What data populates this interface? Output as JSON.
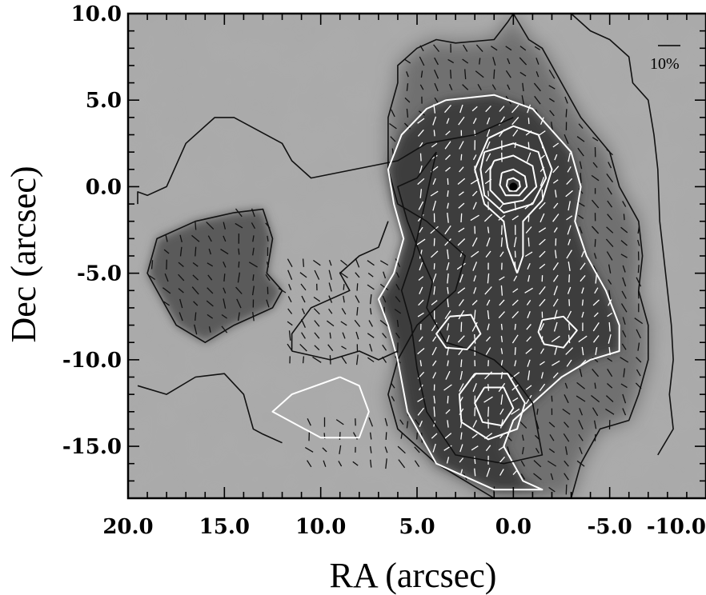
{
  "chart_data": {
    "type": "contour",
    "title": "",
    "xlabel": "RA (arcsec)",
    "ylabel": "Dec (arcsec)",
    "xlim": [
      20.0,
      -10.0
    ],
    "ylim": [
      -18.0,
      10.0
    ],
    "x_ticks": [
      20.0,
      15.0,
      10.0,
      5.0,
      0.0,
      -5.0,
      -10.0
    ],
    "x_tick_labels": [
      "20.0",
      "15.0",
      "10.0",
      "5.0",
      "0.0",
      "-5.0",
      "-10.0"
    ],
    "y_ticks": [
      10.0,
      5.0,
      0.0,
      -5.0,
      -10.0,
      -15.0
    ],
    "y_tick_labels": [
      "10.0",
      "5.0",
      "0.0",
      "-5.0",
      "-10.0",
      "-15.0"
    ],
    "x_minor_step": 1.0,
    "y_minor_step": 1.0,
    "scale_bar_label": "10%",
    "grid": false,
    "background": "greyscale intensity image",
    "colors": {
      "contour_dark": "#111111",
      "contour_light": "#ffffff",
      "vector_dark": "#111111",
      "vector_light": "#ffffff",
      "bg_outer": "#a9a9a9",
      "bg_inner": "#3c3c3c"
    },
    "peak": {
      "ra": 0.0,
      "dec": 0.0
    },
    "contours": [
      {
        "name": "outer",
        "color": "dark",
        "points": [
          [
            0,
            4
          ],
          [
            2,
            3
          ],
          [
            4.5,
            2.5
          ],
          [
            6,
            1.5
          ],
          [
            10.5,
            0.5
          ],
          [
            11.5,
            1.5
          ],
          [
            12,
            2.5
          ],
          [
            14.5,
            4
          ],
          [
            15.5,
            4
          ],
          [
            17,
            2.5
          ],
          [
            18,
            0
          ],
          [
            19,
            -0.5
          ],
          [
            19.5,
            -0.3
          ],
          [
            19.5,
            -1
          ]
        ]
      },
      {
        "name": "envelope",
        "color": "dark",
        "points": [
          [
            0,
            10
          ],
          [
            -0.8,
            8.5
          ],
          [
            -1.5,
            8
          ],
          [
            -2.5,
            6
          ],
          [
            -3.5,
            4
          ],
          [
            -5,
            2
          ],
          [
            -5.5,
            0
          ],
          [
            -6.5,
            -2
          ],
          [
            -6.7,
            -4
          ],
          [
            -6.5,
            -6
          ],
          [
            -7,
            -8
          ],
          [
            -7,
            -10
          ],
          [
            -6.5,
            -12
          ],
          [
            -6,
            -13.5
          ],
          [
            -4.5,
            -14
          ],
          [
            -3.5,
            -16
          ],
          [
            -3,
            -18
          ],
          [
            1,
            -18
          ],
          [
            4,
            -16
          ],
          [
            6,
            -14
          ],
          [
            6.5,
            -12
          ],
          [
            6,
            -10
          ],
          [
            5,
            -8
          ],
          [
            3,
            -6
          ],
          [
            2.5,
            -4
          ],
          [
            4.5,
            -2
          ],
          [
            6,
            -1
          ],
          [
            6.5,
            1
          ],
          [
            6.5,
            4
          ],
          [
            6,
            6
          ],
          [
            6,
            7
          ],
          [
            5,
            8
          ],
          [
            4,
            8.5
          ],
          [
            3,
            8.3
          ],
          [
            1,
            8.5
          ],
          [
            0.3,
            9.5
          ],
          [
            0,
            10
          ]
        ]
      },
      {
        "name": "white-main",
        "color": "light",
        "points": [
          [
            3.5,
            5
          ],
          [
            1,
            5.3
          ],
          [
            -1,
            4.5
          ],
          [
            -3,
            2
          ],
          [
            -3.5,
            0
          ],
          [
            -3.2,
            -2
          ],
          [
            -3.8,
            -4
          ],
          [
            -4.8,
            -6
          ],
          [
            -5.5,
            -8
          ],
          [
            -5.5,
            -9.5
          ],
          [
            -4,
            -10
          ],
          [
            -2.5,
            -11
          ],
          [
            -1,
            -12.5
          ],
          [
            0,
            -13.5
          ],
          [
            0.5,
            -15
          ],
          [
            -0.5,
            -17
          ],
          [
            -1.5,
            -17.5
          ],
          [
            1,
            -17.5
          ],
          [
            4,
            -16
          ],
          [
            5.5,
            -13
          ],
          [
            6,
            -10
          ],
          [
            6.5,
            -8
          ],
          [
            7,
            -6.5
          ],
          [
            6.2,
            -5
          ],
          [
            5.7,
            -3
          ],
          [
            6.2,
            -1
          ],
          [
            6.5,
            1
          ],
          [
            5.8,
            3
          ],
          [
            4.5,
            4.5
          ],
          [
            3.5,
            5
          ]
        ]
      },
      {
        "name": "inner-dark",
        "color": "dark",
        "points": [
          [
            4,
            2
          ],
          [
            5,
            0.5
          ],
          [
            6,
            0
          ],
          [
            5.5,
            -2
          ],
          [
            4.8,
            -4
          ],
          [
            4.2,
            -5.5
          ],
          [
            4.5,
            -7
          ],
          [
            3.5,
            -9
          ],
          [
            2,
            -9.5
          ],
          [
            1,
            -10
          ],
          [
            0,
            -11
          ],
          [
            -1,
            -12.5
          ],
          [
            -1.5,
            -15.5
          ],
          [
            0.5,
            -16
          ],
          [
            3,
            -15.5
          ],
          [
            4.5,
            -13
          ],
          [
            5,
            -10.5
          ],
          [
            5.3,
            -8
          ],
          [
            5.8,
            -6
          ],
          [
            5.2,
            -4
          ],
          [
            4.8,
            -2
          ],
          [
            4,
            2
          ]
        ]
      },
      {
        "name": "white-peak-1",
        "color": "light",
        "points": [
          [
            -0.2,
            -5
          ],
          [
            0.3,
            -3.5
          ],
          [
            0.5,
            -2
          ],
          [
            1.5,
            -1
          ],
          [
            2,
            1
          ],
          [
            1.3,
            2.8
          ],
          [
            0,
            3.5
          ],
          [
            -1.3,
            3
          ],
          [
            -2,
            1
          ],
          [
            -1.5,
            -0.8
          ],
          [
            -0.5,
            -2
          ],
          [
            -0.5,
            -4
          ],
          [
            -0.2,
            -5
          ]
        ]
      },
      {
        "name": "white-peak-2",
        "color": "light",
        "points": [
          [
            1.5,
            2
          ],
          [
            0,
            2.5
          ],
          [
            -1.3,
            2
          ],
          [
            -1.7,
            0.5
          ],
          [
            -1,
            -1
          ],
          [
            0.5,
            -1.5
          ],
          [
            1.5,
            -0.5
          ],
          [
            1.7,
            1
          ],
          [
            1.5,
            2
          ]
        ]
      },
      {
        "name": "white-peak-3",
        "color": "light",
        "points": [
          [
            1,
            1.5
          ],
          [
            0,
            1.8
          ],
          [
            -1,
            1.2
          ],
          [
            -1.2,
            0
          ],
          [
            -0.5,
            -0.8
          ],
          [
            0.5,
            -1
          ],
          [
            1.2,
            -0.2
          ],
          [
            1.2,
            1
          ],
          [
            1,
            1.5
          ]
        ]
      },
      {
        "name": "white-peak-4",
        "color": "light",
        "points": [
          [
            0.6,
            0.8
          ],
          [
            0,
            1
          ],
          [
            -0.6,
            0.6
          ],
          [
            -0.7,
            0
          ],
          [
            -0.3,
            -0.5
          ],
          [
            0.4,
            -0.5
          ],
          [
            0.7,
            0.1
          ],
          [
            0.6,
            0.8
          ]
        ]
      },
      {
        "name": "white-peak-5",
        "color": "light",
        "points": [
          [
            0.3,
            0.4
          ],
          [
            0,
            0.5
          ],
          [
            -0.3,
            0.3
          ],
          [
            -0.35,
            0
          ],
          [
            -0.15,
            -0.25
          ],
          [
            0.2,
            -0.25
          ],
          [
            0.35,
            0.05
          ],
          [
            0.3,
            0.4
          ]
        ]
      },
      {
        "name": "white-knot-1",
        "color": "light",
        "points": [
          [
            3.3,
            -7.5
          ],
          [
            2.2,
            -7.4
          ],
          [
            1.7,
            -8.5
          ],
          [
            2.4,
            -9.4
          ],
          [
            3.5,
            -9.3
          ],
          [
            4,
            -8.5
          ],
          [
            3.3,
            -7.5
          ]
        ]
      },
      {
        "name": "white-knot-2",
        "color": "light",
        "points": [
          [
            -1.5,
            -7.7
          ],
          [
            -2.6,
            -7.5
          ],
          [
            -3.3,
            -8.3
          ],
          [
            -2.6,
            -9.3
          ],
          [
            -1.6,
            -9.1
          ],
          [
            -1.3,
            -8.4
          ],
          [
            -1.5,
            -7.7
          ]
        ]
      },
      {
        "name": "white-south-1",
        "color": "light",
        "points": [
          [
            2,
            -10.8
          ],
          [
            0.3,
            -10.8
          ],
          [
            -0.6,
            -12.5
          ],
          [
            -0.2,
            -14
          ],
          [
            1.3,
            -14.6
          ],
          [
            2.7,
            -13.6
          ],
          [
            2.8,
            -12
          ],
          [
            2,
            -10.8
          ]
        ]
      },
      {
        "name": "white-south-2",
        "color": "light",
        "points": [
          [
            1.5,
            -11.6
          ],
          [
            0.5,
            -11.6
          ],
          [
            0,
            -12.8
          ],
          [
            0.6,
            -13.8
          ],
          [
            1.6,
            -13.6
          ],
          [
            2,
            -12.5
          ],
          [
            1.5,
            -11.6
          ]
        ]
      },
      {
        "name": "white-isolated",
        "color": "light",
        "points": [
          [
            9,
            -11
          ],
          [
            11.5,
            -12
          ],
          [
            12.5,
            -13
          ],
          [
            10,
            -14.5
          ],
          [
            8,
            -14.5
          ],
          [
            7.5,
            -13
          ],
          [
            8,
            -11.5
          ],
          [
            9,
            -11
          ]
        ]
      },
      {
        "name": "left-blob",
        "color": "dark",
        "points": [
          [
            14.5,
            -1.5
          ],
          [
            13,
            -1.3
          ],
          [
            12.5,
            -3
          ],
          [
            12.8,
            -5
          ],
          [
            12,
            -6
          ],
          [
            12.5,
            -7
          ],
          [
            14.5,
            -8
          ],
          [
            16,
            -9
          ],
          [
            17.5,
            -8
          ],
          [
            18,
            -7
          ],
          [
            19,
            -5
          ],
          [
            18.5,
            -3
          ],
          [
            16.5,
            -2
          ],
          [
            14.5,
            -1.5
          ]
        ]
      },
      {
        "name": "bridge-top",
        "color": "dark",
        "points": [
          [
            6.5,
            -2
          ],
          [
            7,
            -3.5
          ],
          [
            8,
            -4
          ],
          [
            9,
            -5
          ],
          [
            8.5,
            -6
          ],
          [
            10.5,
            -7
          ],
          [
            11.5,
            -8.5
          ],
          [
            11.5,
            -9.5
          ]
        ]
      },
      {
        "name": "bridge-bottom",
        "color": "dark",
        "points": [
          [
            11.5,
            -9.5
          ],
          [
            9.5,
            -10
          ],
          [
            8,
            -9.5
          ],
          [
            7,
            -10
          ],
          [
            6,
            -9.5
          ]
        ]
      },
      {
        "name": "lower-left-branch",
        "color": "dark",
        "points": [
          [
            19.5,
            -11.5
          ],
          [
            18,
            -12
          ],
          [
            16.5,
            -11
          ],
          [
            15,
            -10.8
          ],
          [
            14,
            -12
          ],
          [
            13.5,
            -14
          ],
          [
            13,
            -14.3
          ],
          [
            12,
            -14.8
          ]
        ]
      },
      {
        "name": "right-edge",
        "color": "dark",
        "points": [
          [
            -3,
            10
          ],
          [
            -4,
            9
          ],
          [
            -5,
            8.5
          ],
          [
            -6,
            7.5
          ],
          [
            -6.2,
            6
          ],
          [
            -7,
            5
          ],
          [
            -7.3,
            3
          ],
          [
            -7.5,
            1
          ],
          [
            -7.6,
            -2
          ],
          [
            -7.8,
            -4
          ],
          [
            -8,
            -6
          ],
          [
            -8.2,
            -8
          ],
          [
            -8.3,
            -10
          ],
          [
            -8.1,
            -12
          ],
          [
            -8.3,
            -14
          ],
          [
            -7.5,
            -15.5
          ]
        ]
      }
    ],
    "vector_regions": [
      {
        "name": "main-dark",
        "color": "dark",
        "ra": [
          -6.5,
          6.5
        ],
        "dec": [
          -17.5,
          8.5
        ],
        "step": 0.75,
        "within": "envelope",
        "exclude": "white-main"
      },
      {
        "name": "main-light",
        "color": "light",
        "ra": [
          -5,
          5
        ],
        "dec": [
          -16.5,
          4.5
        ],
        "step": 0.7,
        "within": "white-main",
        "exclude": "white-peak-3"
      },
      {
        "name": "left-blob",
        "color": "dark",
        "ra": [
          12,
          19
        ],
        "dec": [
          -9,
          -1.3
        ],
        "step": 0.75,
        "within": "left-blob",
        "exclude": ""
      },
      {
        "name": "bridge",
        "color": "dark",
        "ra": [
          6,
          12
        ],
        "dec": [
          -10,
          -4
        ],
        "step": 0.7,
        "within": "",
        "exclude": ""
      },
      {
        "name": "isolated",
        "color": "dark",
        "ra": [
          5,
          11
        ],
        "dec": [
          -16,
          -13
        ],
        "step": 0.8,
        "within": "",
        "exclude": ""
      }
    ]
  }
}
